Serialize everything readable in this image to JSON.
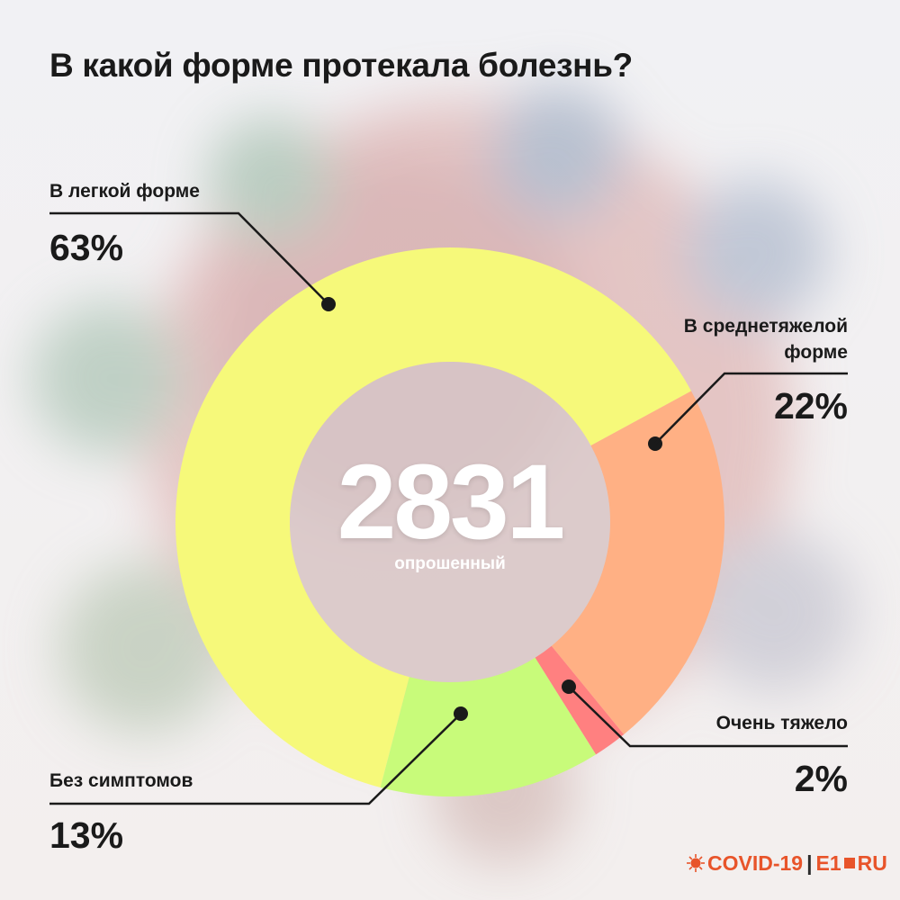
{
  "title": "В какой форме протекала болезнь?",
  "center": {
    "value": "2831",
    "caption": "опрошенный"
  },
  "labels": {
    "mild": {
      "name": "В легкой форме",
      "pct": "63%"
    },
    "moderate": {
      "name_line1": "В среднетяжелой",
      "name_line2": "форме",
      "pct": "22%"
    },
    "severe": {
      "name": "Очень тяжело",
      "pct": "2%"
    },
    "asymptomatic": {
      "name": "Без симптомов",
      "pct": "13%"
    }
  },
  "logo": {
    "covid": "COVID-19",
    "sep": "|",
    "e1": "E1",
    "ru": "RU"
  },
  "chart_data": {
    "type": "pie",
    "variant": "donut",
    "title": "В какой форме протекала болезнь?",
    "total": 2831,
    "total_label": "опрошенный",
    "categories": [
      "В легкой форме",
      "В среднетяжелой форме",
      "Очень тяжело",
      "Без симптомов"
    ],
    "values": [
      63,
      22,
      2,
      13
    ],
    "colors": [
      "#f6f97a",
      "#ffb084",
      "#ff8080",
      "#c8fb7a"
    ],
    "legend": "none"
  }
}
